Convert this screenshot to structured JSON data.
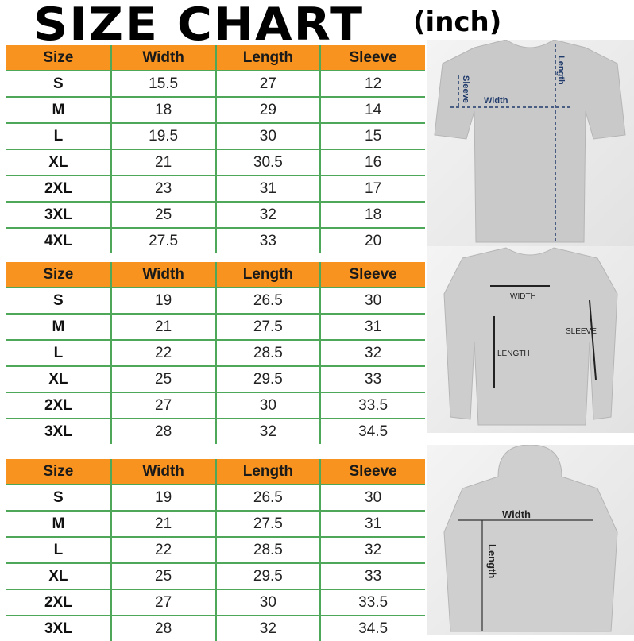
{
  "title": "SIZE CHART",
  "unit": "(inch)",
  "colors": {
    "header_bg": "#f7931e",
    "grid": "#4fa85a"
  },
  "tables": [
    {
      "headers": [
        "Size",
        "Width",
        "Length",
        "Sleeve"
      ],
      "rows": [
        [
          "S",
          "15.5",
          "27",
          "12"
        ],
        [
          "M",
          "18",
          "29",
          "14"
        ],
        [
          "L",
          "19.5",
          "30",
          "15"
        ],
        [
          "XL",
          "21",
          "30.5",
          "16"
        ],
        [
          "2XL",
          "23",
          "31",
          "17"
        ],
        [
          "3XL",
          "25",
          "32",
          "18"
        ],
        [
          "4XL",
          "27.5",
          "33",
          "20"
        ]
      ]
    },
    {
      "headers": [
        "Size",
        "Width",
        "Length",
        "Sleeve"
      ],
      "rows": [
        [
          "S",
          "19",
          "26.5",
          "30"
        ],
        [
          "M",
          "21",
          "27.5",
          "31"
        ],
        [
          "L",
          "22",
          "28.5",
          "32"
        ],
        [
          "XL",
          "25",
          "29.5",
          "33"
        ],
        [
          "2XL",
          "27",
          "30",
          "33.5"
        ],
        [
          "3XL",
          "28",
          "32",
          "34.5"
        ]
      ]
    },
    {
      "headers": [
        "Size",
        "Width",
        "Length",
        "Sleeve"
      ],
      "rows": [
        [
          "S",
          "19",
          "26.5",
          "30"
        ],
        [
          "M",
          "21",
          "27.5",
          "31"
        ],
        [
          "L",
          "22",
          "28.5",
          "32"
        ],
        [
          "XL",
          "25",
          "29.5",
          "33"
        ],
        [
          "2XL",
          "27",
          "30",
          "33.5"
        ],
        [
          "3XL",
          "28",
          "32",
          "34.5"
        ]
      ]
    }
  ],
  "images": {
    "tshirt": {
      "width": "Width",
      "length": "Length",
      "sleeve": "Sleeve"
    },
    "sweatshirt": {
      "width": "WIDTH",
      "length": "LENGTH",
      "sleeve": "SLEEVE"
    },
    "hoodie": {
      "width": "Width",
      "length": "Length"
    }
  }
}
